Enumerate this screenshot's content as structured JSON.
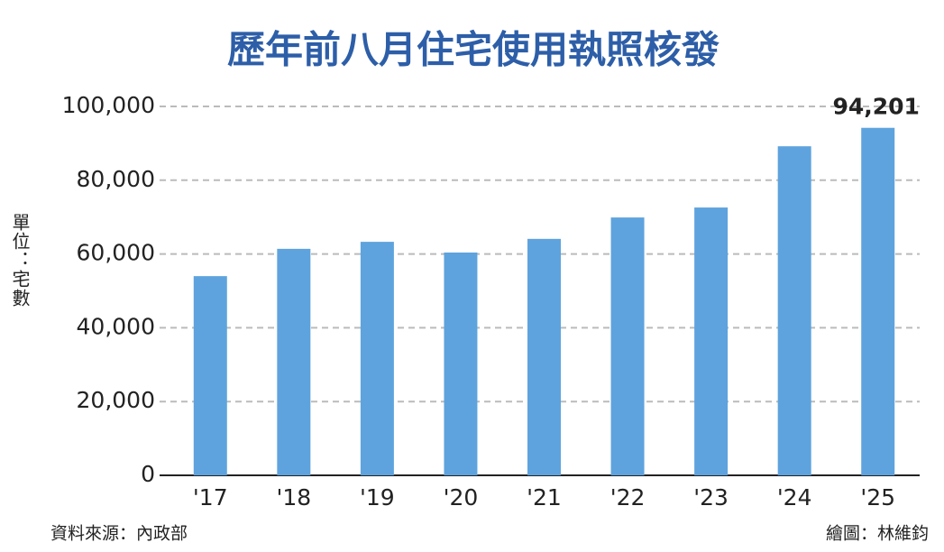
{
  "chart_data": {
    "type": "bar",
    "title": "歷年前八月住宅使用執照核發",
    "y_label": "單位：宅數",
    "source": "資料來源：內政部",
    "credit": "繪圖：林維鈞",
    "categories": [
      "'17",
      "'18",
      "'19",
      "'20",
      "'21",
      "'22",
      "'23",
      "'24",
      "'25"
    ],
    "values": [
      54000,
      61400,
      63300,
      60400,
      64100,
      69900,
      72600,
      89200,
      94201
    ],
    "value_labels": [
      null,
      null,
      null,
      null,
      null,
      null,
      null,
      null,
      "94,201"
    ],
    "color": "#5ea3dd",
    "ylim": [
      0,
      100000
    ],
    "yticks": [
      0,
      {
        "value": 20000,
        "label": "20,000"
      },
      {
        "value": 40000,
        "label": "40,000"
      },
      {
        "value": 60000,
        "label": "60,000"
      },
      {
        "value": 80000,
        "label": "80,000"
      },
      {
        "value": 100000,
        "label": "100,000"
      }
    ],
    "grid": true
  }
}
